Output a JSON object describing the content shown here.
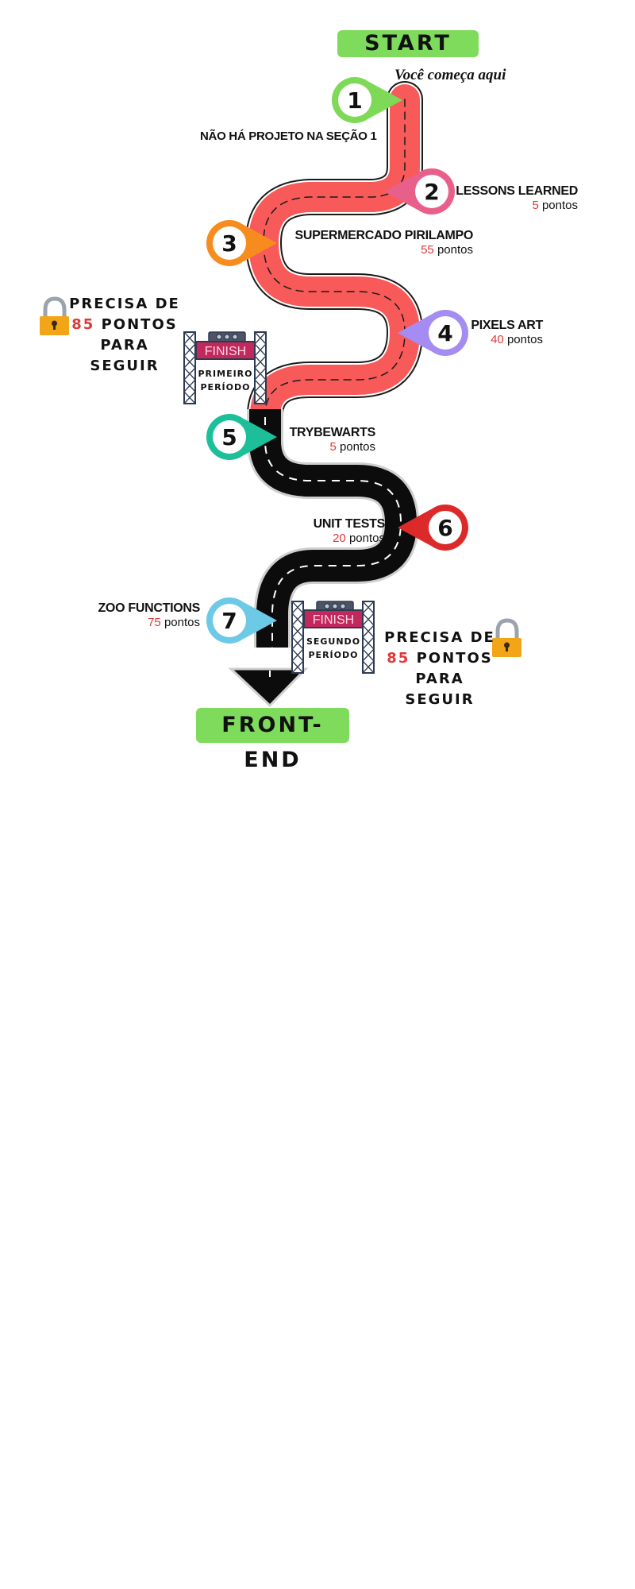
{
  "start": {
    "label": "START",
    "note": "Você começa aqui"
  },
  "end": {
    "label": "FRONT-END"
  },
  "section1_note": "NÃO HÁ PROJETO NA SEÇÃO 1",
  "points_unit": "pontos",
  "stops": [
    {
      "number": "1",
      "color": "#7ed957"
    },
    {
      "number": "2",
      "color": "#e8608a",
      "title": "LESSONS LEARNED",
      "points": "5"
    },
    {
      "number": "3",
      "color": "#f78c1e",
      "title": "SUPERMERCADO PIRILAMPO",
      "points": "55"
    },
    {
      "number": "4",
      "color": "#a58cf2",
      "title": "PIXELS ART",
      "points": "40"
    },
    {
      "number": "5",
      "color": "#1cbf9a",
      "title": "TRYBEWARTS",
      "points": "5"
    },
    {
      "number": "6",
      "color": "#dc2a2a",
      "title": "UNIT TESTS",
      "points": "20"
    },
    {
      "number": "7",
      "color": "#6ccae6",
      "title": "ZOO FUNCTIONS",
      "points": "75"
    }
  ],
  "finish_gates": [
    {
      "sign": "FINISH",
      "label_line1": "PRIMEIRO",
      "label_line2": "PERÍODO"
    },
    {
      "sign": "FINISH",
      "label_line1": "SEGUNDO",
      "label_line2": "PERÍODO"
    }
  ],
  "locks": [
    {
      "line1": "PRECISA DE",
      "points": "85",
      "line2_suffix": "PONTOS",
      "line3": "PARA SEGUIR"
    },
    {
      "line1": "PRECISA DE",
      "points": "85",
      "line2_suffix": "PONTOS",
      "line3": "PARA SEGUIR"
    }
  ],
  "colors": {
    "road_section1": "#f85a5a",
    "road_section2": "#0c0c0c",
    "banner": "#7fdb5c",
    "points_number": "#e03838",
    "finish_sign": "#c2285c",
    "lock_body": "#f2a516"
  }
}
